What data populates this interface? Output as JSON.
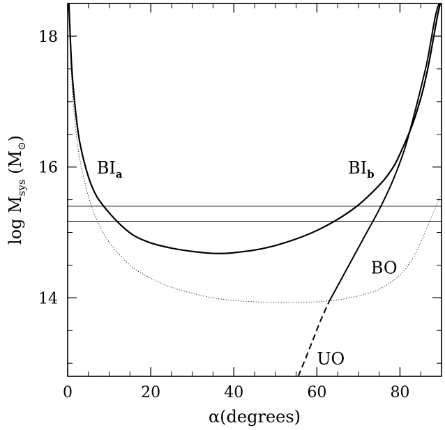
{
  "chart_data": {
    "type": "line",
    "xlabel": "α(degrees)",
    "ylabel": {
      "prefix": "log M",
      "subscript": "sys",
      "unit_open": " (M",
      "unit_symbol": "⊙",
      "unit_close": ")"
    },
    "xlim": [
      0,
      90
    ],
    "ylim": [
      12.8,
      18.5
    ],
    "x_ticks": [
      0,
      20,
      40,
      60,
      80
    ],
    "x_tick_labels": [
      "0",
      "20",
      "40",
      "60",
      "80"
    ],
    "y_ticks": [
      14,
      16,
      18
    ],
    "y_tick_labels": [
      "14",
      "16",
      "18"
    ],
    "x_minor_step": 5,
    "y_minor_step": 0.5,
    "grid": false,
    "legend": "none",
    "series": [
      {
        "style": "solid-thick",
        "x": [
          0.3,
          1,
          2,
          3,
          5,
          7,
          10,
          13,
          16,
          20,
          25,
          30,
          35,
          38,
          40,
          45,
          50,
          55,
          60,
          65,
          70,
          75,
          78,
          80,
          83,
          85,
          86,
          87,
          88,
          89,
          89.7
        ],
        "y": [
          18.5,
          17.5,
          16.8,
          16.35,
          15.85,
          15.55,
          15.3,
          15.1,
          14.95,
          14.84,
          14.76,
          14.71,
          14.68,
          14.68,
          14.69,
          14.73,
          14.8,
          14.9,
          15.03,
          15.2,
          15.42,
          15.72,
          15.96,
          16.2,
          16.65,
          17.05,
          17.3,
          17.6,
          17.95,
          18.3,
          18.5
        ]
      },
      {
        "style": "dotted-thin",
        "x": [
          0.3,
          1,
          2,
          3,
          5,
          7,
          10,
          15,
          20,
          25,
          30,
          35,
          40,
          45,
          50,
          55,
          60,
          65,
          70,
          75,
          80,
          83,
          85,
          87,
          88,
          89,
          89.7
        ],
        "y": [
          18.5,
          17.3,
          16.55,
          16.1,
          15.55,
          15.2,
          14.85,
          14.5,
          14.3,
          14.16,
          14.07,
          14.0,
          13.96,
          13.94,
          13.93,
          13.93,
          13.94,
          13.97,
          14.03,
          14.13,
          14.35,
          14.6,
          14.85,
          15.15,
          15.3,
          15.45,
          15.55
        ]
      },
      {
        "style": "solid-medium",
        "x": [
          63,
          66,
          69,
          72,
          75,
          78,
          81,
          83,
          85,
          86.5,
          87.5,
          88.5,
          89.3,
          89.8
        ],
        "y": [
          13.95,
          14.3,
          14.65,
          15.0,
          15.35,
          15.75,
          16.25,
          16.7,
          17.2,
          17.6,
          17.95,
          18.3,
          18.48,
          18.5
        ]
      },
      {
        "style": "dashed",
        "x": [
          55.5,
          57,
          59,
          61,
          63
        ],
        "y": [
          12.8,
          13.03,
          13.35,
          13.67,
          13.95
        ]
      },
      {
        "style": "hline-thin",
        "x": [
          0,
          90
        ],
        "y": [
          15.4,
          15.4
        ]
      },
      {
        "style": "hline-thin",
        "x": [
          0,
          90
        ],
        "y": [
          15.17,
          15.17
        ]
      }
    ],
    "annotations": [
      {
        "text": "BI",
        "sub": "a",
        "x": 7,
        "y": 15.9
      },
      {
        "text": "BI",
        "sub": "b",
        "x": 67.5,
        "y": 15.9
      },
      {
        "text": "BO",
        "x": 73,
        "y": 14.37
      },
      {
        "text": "UO",
        "x": 60,
        "y": 12.98
      }
    ]
  }
}
